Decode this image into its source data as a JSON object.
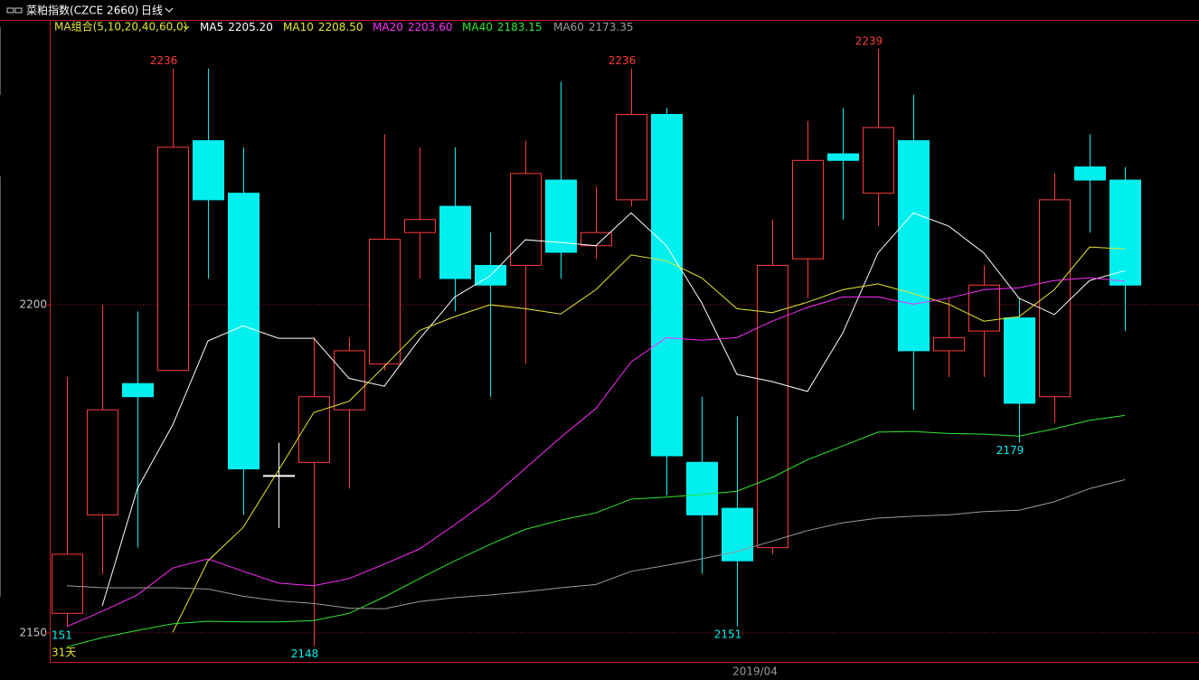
{
  "chart_data": {
    "type": "candlestick",
    "title": "菜粕指数(CZCE 2660)",
    "period": "日线",
    "ma_group": "MA组合(5,10,20,40,60,0)",
    "x_label": "2019/04",
    "left_labels": [
      "151",
      "31天"
    ],
    "ylim": [
      2145.6,
      2243.4
    ],
    "yticks": [
      2200,
      2150
    ],
    "grid": true,
    "up_color": "#ff3b3b",
    "down_color": "#00f0f0",
    "flat_color": "#ffffff",
    "open": [
      2153,
      2168,
      2188,
      2190,
      2225,
      2217,
      2174,
      2176,
      2184,
      2191,
      2211,
      2215,
      2206,
      2206,
      2219,
      2209,
      2216,
      2229,
      2176,
      2169,
      2163,
      2207,
      2223,
      2217,
      2225,
      2193,
      2196,
      2198,
      2186,
      2221,
      2219
    ],
    "close": [
      2162,
      2184,
      2186,
      2224,
      2216,
      2175,
      2174,
      2186,
      2193,
      2210,
      2213,
      2204,
      2203,
      2220,
      2208,
      2211,
      2229,
      2177,
      2168,
      2161,
      2206,
      2222,
      2222,
      2227,
      2193,
      2195,
      2203,
      2185,
      2216,
      2219,
      2203
    ],
    "high": [
      2189,
      2200,
      2199,
      2236,
      2236,
      2224,
      2179,
      2195,
      2195,
      2226,
      2224,
      2224,
      2211,
      2225,
      2234,
      2218,
      2236,
      2230,
      2186,
      2183,
      2213,
      2228,
      2230,
      2239,
      2232,
      2201,
      2206,
      2201,
      2220,
      2226,
      2221
    ],
    "low": [
      2151,
      2159,
      2163,
      2190,
      2204,
      2168,
      2166,
      2148,
      2172,
      2190,
      2204,
      2199,
      2186,
      2191,
      2204,
      2207,
      2215,
      2171,
      2159,
      2151,
      2162,
      2201,
      2213,
      2212,
      2184,
      2189,
      2189,
      2179,
      2182,
      2211,
      2196
    ],
    "labeled_highs": [
      3,
      16,
      23
    ],
    "labeled_lows": [
      7,
      19,
      27
    ],
    "series": [
      {
        "name": "MA5",
        "legend_value": "2205.20",
        "color": "#ffffff",
        "values": [
          null,
          2154.1,
          2172.0,
          2181.7,
          2194.5,
          2196.8,
          2194.9,
          2194.9,
          2188.8,
          2187.6,
          2194.8,
          2201.2,
          2204.4,
          2209.9,
          2209.5,
          2209.0,
          2214.0,
          2209.0,
          2200.3,
          2189.4,
          2188.3,
          2186.8,
          2195.7,
          2207.9,
          2214.0,
          2212.0,
          2207.9,
          2201.0,
          2198.5,
          2203.7,
          2205.2
        ]
      },
      {
        "name": "MA10",
        "legend_value": "2208.50",
        "color": "#e8e82a",
        "values": [
          null,
          null,
          null,
          2150.1,
          2161.0,
          2166.1,
          2174.8,
          2183.6,
          2185.3,
          2190.6,
          2196.1,
          2198.2,
          2200.0,
          2199.4,
          2198.6,
          2202.3,
          2207.6,
          2206.7,
          2204.1,
          2199.4,
          2198.8,
          2200.4,
          2202.3,
          2203.2,
          2201.7,
          2200.1,
          2197.5,
          2198.2,
          2202.3,
          2208.8,
          2208.5
        ]
      },
      {
        "name": "MA20",
        "legend_value": "2203.60",
        "color": "#ff2bff",
        "values": [
          2151.0,
          2153.3,
          2155.8,
          2159.9,
          2161.3,
          2159.4,
          2157.6,
          2157.2,
          2158.3,
          2160.5,
          2162.8,
          2166.5,
          2170.4,
          2175.1,
          2179.8,
          2184.2,
          2191.3,
          2195.0,
          2194.6,
          2195.0,
          2197.5,
          2199.6,
          2201.2,
          2201.2,
          2200.1,
          2201.0,
          2202.3,
          2202.6,
          2203.7,
          2204.1,
          2203.6
        ]
      },
      {
        "name": "MA40",
        "legend_value": "2183.15",
        "color": "#2ee82e",
        "values": [
          2147.9,
          2149.3,
          2150.4,
          2151.4,
          2151.8,
          2151.7,
          2151.7,
          2151.9,
          2153.0,
          2155.5,
          2158.3,
          2161.0,
          2163.5,
          2165.8,
          2167.2,
          2168.3,
          2170.4,
          2170.7,
          2171.1,
          2171.6,
          2173.7,
          2176.4,
          2178.5,
          2180.6,
          2180.7,
          2180.4,
          2180.3,
          2180.0,
          2181.1,
          2182.4,
          2183.15
        ]
      },
      {
        "name": "MA60",
        "legend_value": "2173.35",
        "color": "#9a9a9a",
        "values": [
          2157.2,
          2156.9,
          2156.9,
          2156.9,
          2156.7,
          2155.6,
          2154.9,
          2154.5,
          2153.8,
          2153.7,
          2154.8,
          2155.4,
          2155.8,
          2156.3,
          2156.9,
          2157.4,
          2159.4,
          2160.3,
          2161.3,
          2162.4,
          2164.0,
          2165.6,
          2166.8,
          2167.5,
          2167.8,
          2168.0,
          2168.5,
          2168.7,
          2170.0,
          2172.0,
          2173.35
        ]
      }
    ]
  }
}
